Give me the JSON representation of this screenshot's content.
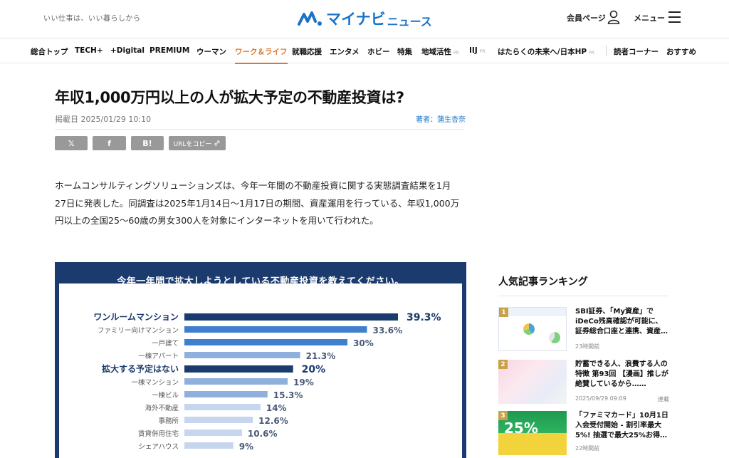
{
  "header": {
    "tagline": "いい仕事は、いい暮らしから",
    "logo_main": "マイナビ",
    "logo_sub": "ニュース",
    "member_label": "会員ページ",
    "menu_label": "メニュー"
  },
  "nav": {
    "items": [
      {
        "label": "総合トップ",
        "pr": ""
      },
      {
        "label": "TECH+",
        "pr": ""
      },
      {
        "label": "+Digital",
        "pr": ""
      },
      {
        "label": "PREMIUM",
        "pr": ""
      },
      {
        "label": "ウーマン",
        "pr": ""
      },
      {
        "label": "ワーク＆ライフ",
        "pr": ""
      },
      {
        "label": "就職応援",
        "pr": ""
      },
      {
        "label": "エンタメ",
        "pr": ""
      },
      {
        "label": "ホビー",
        "pr": ""
      },
      {
        "label": "特集",
        "pr": ""
      },
      {
        "label": "地域活性",
        "pr": "PR"
      },
      {
        "label": "IIJ",
        "pr": "PR"
      },
      {
        "label": "はたらくの未来へ/日本HP",
        "pr": "PR"
      },
      {
        "label": "読者コーナー",
        "pr": ""
      },
      {
        "label": "おすすめ",
        "pr": ""
      }
    ],
    "active_index": 5
  },
  "article": {
    "title": "年収1,000万円以上の人が拡大予定の不動産投資は?",
    "date": "掲載日 2025/01/29 10:10",
    "author": "著者：蒲生杏奈",
    "share": {
      "x_label": "𝕏",
      "facebook_label": "f",
      "hatena_label": "B!",
      "url_label": "URLをコピー"
    },
    "paragraph": "ホームコンサルティングソリューションズは、今年一年間の不動産投資に関する実態調査結果を1月27日に発表した。同調査は2025年1月14日〜1月17日の期間、資産運用を行っている、年収1,000万円以上の全国25〜60歳の男女300人を対象にインターネットを用いて行われた。"
  },
  "chart_data": {
    "type": "bar",
    "title": "今年一年間で拡大しようとしている不動産投資を教えてください。",
    "categories": [
      "ワンルームマンション",
      "ファミリー向けマンション",
      "一戸建て",
      "一棟アパート",
      "拡大する予定はない",
      "一棟マンション",
      "一棟ビル",
      "海外不動産",
      "事務所",
      "賃貸併用住宅",
      "シェアハウス"
    ],
    "values": [
      39.3,
      33.6,
      30,
      21.3,
      20,
      19,
      15.3,
      14,
      12.6,
      10.6,
      9
    ],
    "value_labels": [
      "39.3%",
      "33.6%",
      "30%",
      "21.3%",
      "20%",
      "19%",
      "15.3%",
      "14%",
      "12.6%",
      "10.6%",
      "9%"
    ],
    "highlighted": [
      0,
      4
    ],
    "colors": {
      "dark": "#1b3a6e",
      "mid": "#3f7fd0",
      "light": "#8fb0dd",
      "pale": "#c5d6ee",
      "header": "#1b3a6e"
    }
  },
  "sidebar": {
    "title": "人気記事ランキング",
    "ranking": [
      {
        "rank": "1",
        "title": "SBI証券、「My資産」でiDeCo残高確認が可能に、証券総合口座と連携、資産…",
        "meta": "23時間前",
        "tag": ""
      },
      {
        "rank": "2",
        "title": "貯蓄できる人、浪費する人の特徴 第93回 【漫画】推しが絶賛しているから……",
        "meta": "2025/09/29 09:09",
        "tag": "連載"
      },
      {
        "rank": "3",
        "title": "「ファミマカード」10月1日入会受付開始 - 割引率最大5%! 抽選で最大25%お得…",
        "meta": "22時間前",
        "tag": ""
      }
    ],
    "rank_color": "#c8a24a"
  }
}
